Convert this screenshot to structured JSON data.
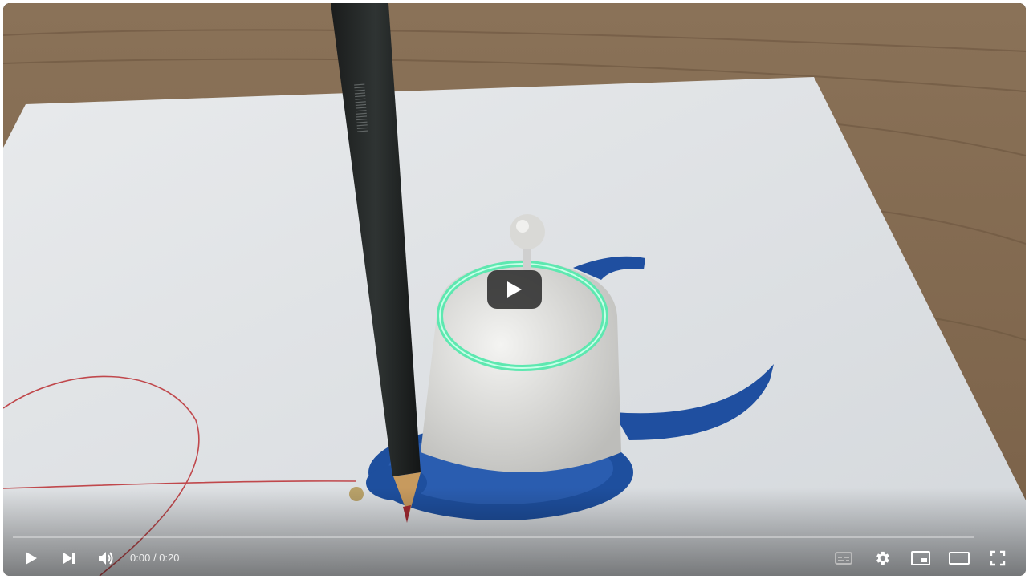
{
  "player": {
    "current_time": "0:00",
    "separator": "/",
    "duration": "0:20",
    "progress_fraction": 0,
    "accent_color": "#ff0000"
  },
  "controls": {
    "left": [
      {
        "name": "play-button",
        "icon": "play-icon"
      },
      {
        "name": "next-button",
        "icon": "skip-next-icon"
      },
      {
        "name": "volume-button",
        "icon": "volume-icon"
      }
    ],
    "right": [
      {
        "name": "subtitles-button",
        "icon": "subtitles-icon"
      },
      {
        "name": "settings-button",
        "icon": "gear-icon"
      },
      {
        "name": "miniplayer-button",
        "icon": "miniplayer-icon"
      },
      {
        "name": "theater-button",
        "icon": "theater-icon"
      },
      {
        "name": "fullscreen-button",
        "icon": "fullscreen-icon"
      }
    ]
  },
  "overlay": {
    "big_play_icon": "play-icon"
  }
}
